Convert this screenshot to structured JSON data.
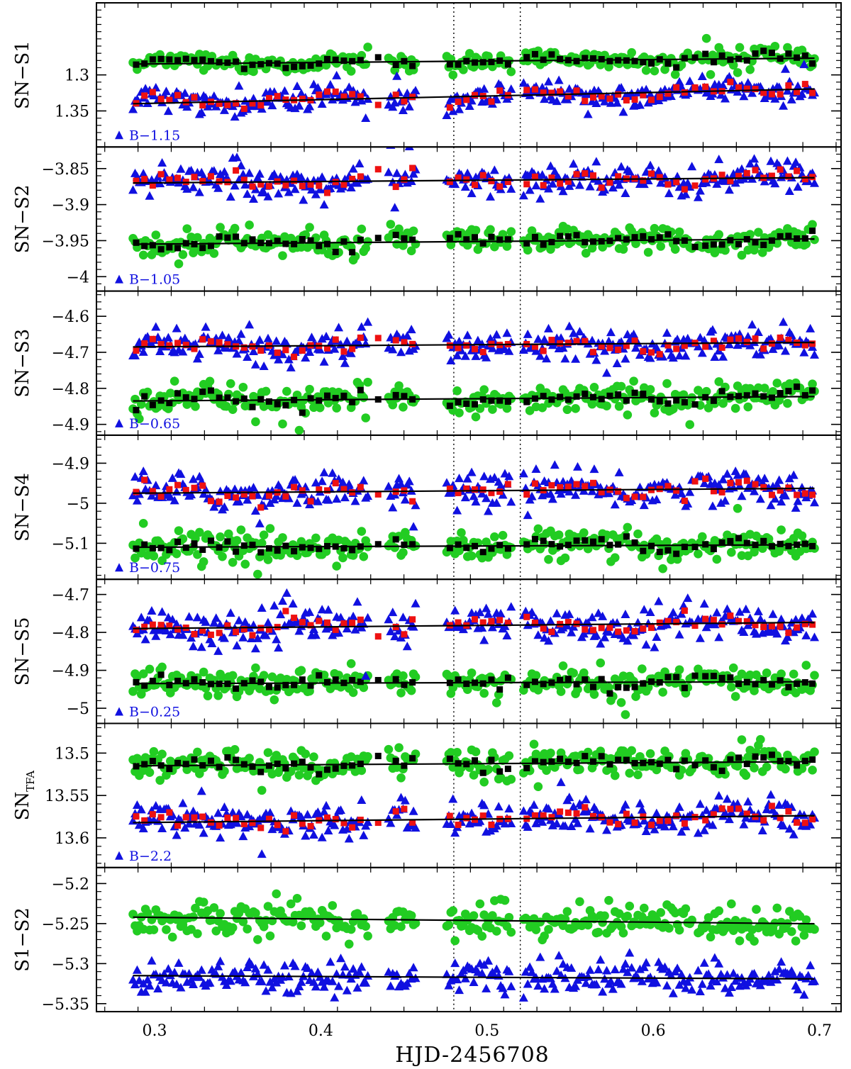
{
  "chart_data": {
    "type": "scatter",
    "xlabel": "HJD-2456708",
    "xlim": [
      0.265,
      0.713
    ],
    "xticks": [
      0.3,
      0.4,
      0.5,
      0.6,
      0.7
    ],
    "xtick_labels": [
      "0.3",
      "0.4",
      "0.5",
      "0.6",
      "0.7"
    ],
    "vlines": [
      0.48,
      0.52
    ],
    "colors": {
      "green_circle": "#22cc22",
      "blue_triangle": "#1010e0",
      "red_square": "#ee1111",
      "black_square": "#000000"
    },
    "panels": [
      {
        "ylabel": "SN−S1",
        "ylim": [
          1.2,
          1.4
        ],
        "invert_y": true,
        "yticks": [
          1.3,
          1.35
        ],
        "ytick_labels": [
          "1.3",
          "1.35"
        ],
        "band_label": "B−1.15",
        "upper": {
          "base": 1.285,
          "slope": 0.02,
          "scatter": 0.006,
          "wave": 0.004
        },
        "lower": {
          "base": 1.34,
          "slope": 0.05,
          "scatter": 0.008,
          "wave": 0.006
        }
      },
      {
        "ylabel": "SN−S2",
        "ylim": [
          -4.02,
          -3.82
        ],
        "invert_y": false,
        "yticks": [
          -4.0,
          -3.95,
          -3.9,
          -3.85
        ],
        "ytick_labels": [
          "−4",
          "−3.95",
          "−3.9",
          "−3.85"
        ],
        "band_label": "B−1.05",
        "upper": {
          "base": -3.955,
          "slope": 0.018,
          "scatter": 0.009,
          "wave": 0.004
        },
        "lower": {
          "base": -3.87,
          "slope": 0.018,
          "scatter": 0.01,
          "wave": 0.005
        }
      },
      {
        "ylabel": "SN−S3",
        "ylim": [
          -4.93,
          -4.53
        ],
        "invert_y": false,
        "yticks": [
          -4.9,
          -4.8,
          -4.7,
          -4.6
        ],
        "ytick_labels": [
          "−4.9",
          "−4.8",
          "−4.7",
          "−4.6"
        ],
        "band_label": "B−0.65",
        "upper": {
          "base": -4.835,
          "slope": 0.03,
          "scatter": 0.018,
          "wave": 0.008
        },
        "lower": {
          "base": -4.685,
          "slope": 0.03,
          "scatter": 0.02,
          "wave": 0.01
        }
      },
      {
        "ylabel": "SN−S4",
        "ylim": [
          -5.19,
          -4.83
        ],
        "invert_y": false,
        "yticks": [
          -5.1,
          -5.0,
          -4.9
        ],
        "ytick_labels": [
          "−5.1",
          "−5",
          "−4.9"
        ],
        "band_label": "B−0.75",
        "upper": {
          "base": -5.11,
          "slope": 0.015,
          "scatter": 0.017,
          "wave": 0.006
        },
        "lower": {
          "base": -4.975,
          "slope": 0.03,
          "scatter": 0.02,
          "wave": 0.008
        }
      },
      {
        "ylabel": "SN−S5",
        "ylim": [
          -5.04,
          -4.66
        ],
        "invert_y": false,
        "yticks": [
          -5.0,
          -4.9,
          -4.8,
          -4.7
        ],
        "ytick_labels": [
          "−5",
          "−4.9",
          "−4.8",
          "−4.7"
        ],
        "band_label": "B−0.25",
        "upper": {
          "base": -4.935,
          "slope": 0.012,
          "scatter": 0.018,
          "wave": 0.006
        },
        "lower": {
          "base": -4.79,
          "slope": 0.04,
          "scatter": 0.022,
          "wave": 0.008
        }
      },
      {
        "ylabel": "SN",
        "ylabel_sub": "TFA",
        "ylim": [
          13.465,
          13.635
        ],
        "invert_y": true,
        "yticks": [
          13.5,
          13.55,
          13.6
        ],
        "ytick_labels": [
          "13.5",
          "13.55",
          "13.6"
        ],
        "band_label": "B−2.2",
        "upper": {
          "base": 13.515,
          "slope": 0.012,
          "scatter": 0.008,
          "wave": 0.003
        },
        "lower": {
          "base": 13.582,
          "slope": 0.02,
          "scatter": 0.009,
          "wave": 0.004
        }
      },
      {
        "ylabel": "S1−S2",
        "ylim": [
          -5.36,
          -5.18
        ],
        "invert_y": false,
        "yticks": [
          -5.35,
          -5.3,
          -5.25,
          -5.2
        ],
        "ytick_labels": [
          "−5.35",
          "−5.3",
          "−5.25",
          "−5.2"
        ],
        "band_label": "",
        "upper": {
          "base": -5.242,
          "slope": -0.02,
          "scatter": 0.01,
          "wave": 0.003
        },
        "lower": {
          "base": -5.315,
          "slope": -0.01,
          "scatter": 0.009,
          "wave": 0.002
        },
        "no_binned": true
      }
    ]
  }
}
